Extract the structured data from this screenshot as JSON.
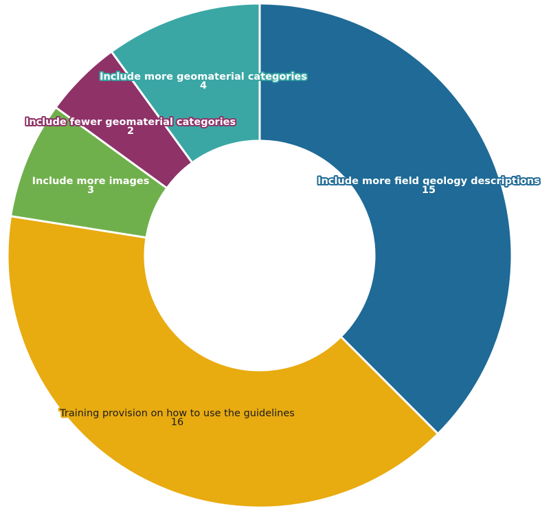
{
  "chart_data": {
    "type": "pie",
    "variant": "donut",
    "title": "",
    "slices": [
      {
        "label": "Include more field geology descriptions",
        "value": 15,
        "color": "#1f6a96",
        "text_color": "#ffffff"
      },
      {
        "label": "Training provision on how to use the guidelines",
        "value": 16,
        "color": "#e8ab10",
        "text_color": "#1c1c1c"
      },
      {
        "label": "Include more images",
        "value": 3,
        "color": "#70b04c",
        "text_color": "#ffffff"
      },
      {
        "label": "Include fewer geomaterial categories",
        "value": 2,
        "color": "#8e3268",
        "text_color": "#ffffff"
      },
      {
        "label": "Include more geomaterial categories",
        "value": 4,
        "color": "#3aa7a5",
        "text_color": "#ffffff"
      }
    ],
    "legend": "none"
  }
}
